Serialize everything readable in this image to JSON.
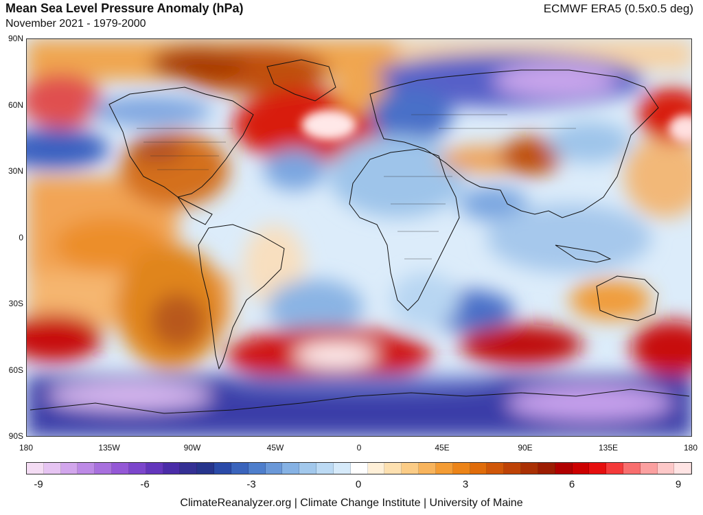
{
  "header": {
    "title": "Mean Sea Level Pressure Anomaly (hPa)",
    "subtitle": "November 2021 - 1979-2000",
    "source": "ECMWF ERA5 (0.5x0.5 deg)"
  },
  "map": {
    "lat_labels": [
      "90N",
      "60N",
      "30N",
      "0",
      "30S",
      "60S",
      "90S"
    ],
    "lon_labels": [
      "180",
      "135W",
      "90W",
      "45W",
      "0",
      "45E",
      "90E",
      "135E",
      "180"
    ]
  },
  "colorbar": {
    "tick_labels": [
      "-9",
      "-6",
      "-3",
      "0",
      "3",
      "6",
      "9"
    ],
    "colors": [
      "#f4dcf4",
      "#e6c4f2",
      "#d2a6ec",
      "#bd8ae6",
      "#a870de",
      "#9458d6",
      "#7c46cc",
      "#6336bc",
      "#4a2ca8",
      "#343094",
      "#26348c",
      "#2a4aa8",
      "#3a64bc",
      "#4e7ecc",
      "#6a98d8",
      "#86b2e4",
      "#a2c8ec",
      "#bcdaf4",
      "#d6eafa",
      "#ffffff",
      "#fff0d8",
      "#fde0b0",
      "#fbcc86",
      "#f8b45c",
      "#f49c34",
      "#ec8418",
      "#e06c0a",
      "#d05608",
      "#be4206",
      "#aa3004",
      "#9c1c02",
      "#b00000",
      "#cc0000",
      "#e60e0e",
      "#f43a3a",
      "#f86e6e",
      "#fba0a0",
      "#fdc8c8",
      "#ffe4e4"
    ]
  },
  "footer": {
    "credit": "ClimateReanalyzer.org | Climate Change Institute | University of Maine"
  }
}
